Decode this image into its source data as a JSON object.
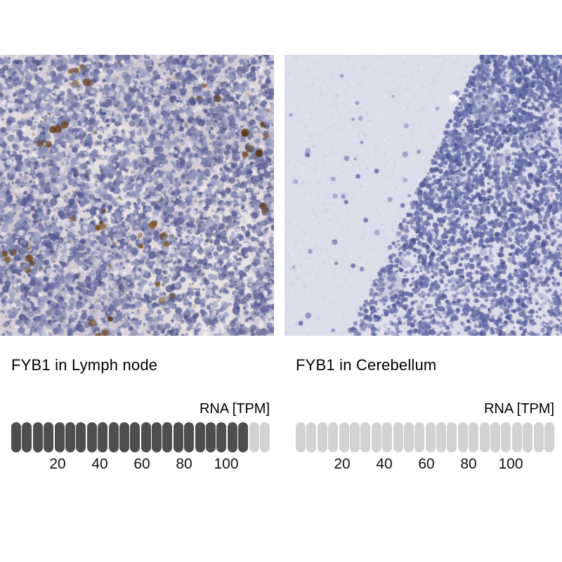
{
  "page": {
    "background": "#ffffff"
  },
  "panels": [
    {
      "caption": "FYB1 in Lymph node",
      "image": {
        "name": "lymph-node-ihc",
        "description": "IHC stained lymph node tissue, hematoxylin blue-purple cells with brown DAB positive cells"
      },
      "bar": {
        "axis_label": "RNA [TPM]",
        "segments_total": 24,
        "segments_filled": 22,
        "ticks": [
          "20",
          "40",
          "60",
          "80",
          "100"
        ]
      }
    },
    {
      "caption": "FYB1 in Cerebellum",
      "image": {
        "name": "cerebellum-ihc",
        "description": "IHC stained cerebellum tissue, pale molecular layer and dense blue granular cell layer band"
      },
      "bar": {
        "axis_label": "RNA [TPM]",
        "segments_total": 24,
        "segments_filled": 0,
        "ticks": [
          "20",
          "40",
          "60",
          "80",
          "100"
        ]
      }
    }
  ],
  "colors": {
    "bar_filled": "#4e4e4e",
    "bar_empty": "#d2d2d2",
    "text": "#000000",
    "lymph": {
      "base": "#cfc8d4",
      "pale": [
        "#eae4e4",
        "#f0ece8",
        "#e2dce2"
      ],
      "cells": [
        "#9297bd",
        "#7d82ae",
        "#6a6fa0",
        "#585d92",
        "#a2a6c6"
      ],
      "nuclei": "#474c7e",
      "gaps": "#f2eef0",
      "brown": [
        "#6b4423",
        "#7a5026",
        "#573517",
        "#8a6234"
      ]
    },
    "cereb": {
      "base": "#dbdde9",
      "cells": [
        "#5f67a2",
        "#6d75ae",
        "#4f5790",
        "#7a82b4"
      ],
      "sparse": "#7d85b5",
      "pale": "#e3e4ef",
      "blob": "#aeb4cf"
    }
  },
  "chart_data": [
    {
      "type": "bar",
      "title": "FYB1 in Lymph node",
      "ylabel": "RNA [TPM]",
      "axis_ticks": [
        20,
        40,
        60,
        80,
        100
      ],
      "xlim": [
        0,
        120
      ],
      "segments_total": 24,
      "segments_filled": 22,
      "approx_value_tpm": 110,
      "legend_position": "none",
      "grid": false
    },
    {
      "type": "bar",
      "title": "FYB1 in Cerebellum",
      "ylabel": "RNA [TPM]",
      "axis_ticks": [
        20,
        40,
        60,
        80,
        100
      ],
      "xlim": [
        0,
        120
      ],
      "segments_total": 24,
      "segments_filled": 0,
      "approx_value_tpm": 0,
      "legend_position": "none",
      "grid": false
    }
  ]
}
